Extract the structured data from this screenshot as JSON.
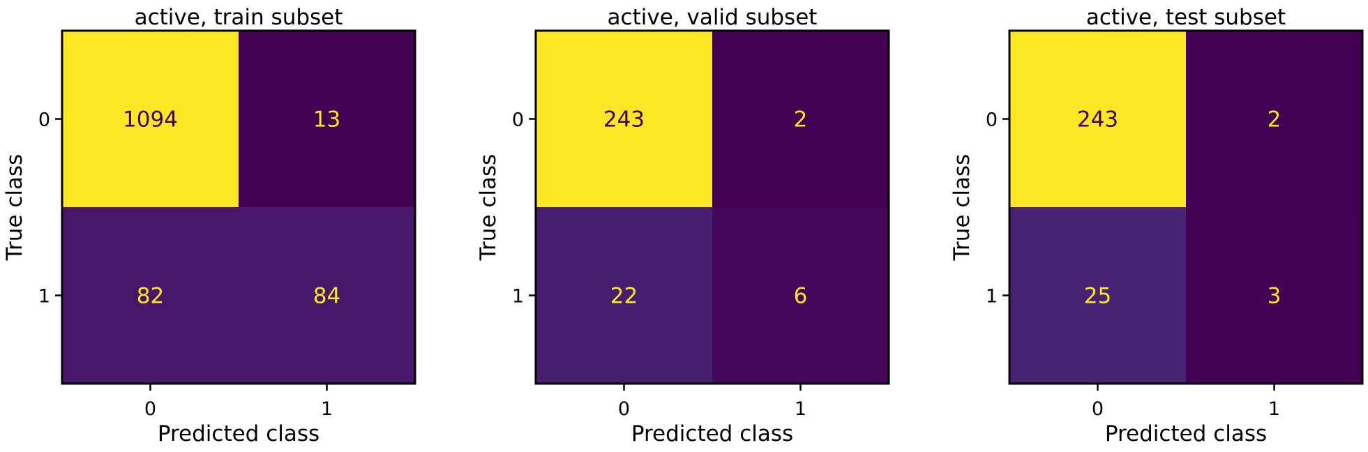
{
  "figure": {
    "colors": {
      "viridis_low": "#440154",
      "viridis_high": "#fde725",
      "text_on_dark": "#fde725",
      "text_on_light": "#440154",
      "axis": "#000000"
    }
  },
  "chart_data": [
    {
      "type": "heatmap",
      "title": "active, train subset",
      "xlabel": "Predicted class",
      "ylabel": "True class",
      "x_categories": [
        "0",
        "1"
      ],
      "y_categories": [
        "0",
        "1"
      ],
      "values": [
        [
          1094,
          13
        ],
        [
          82,
          84
        ]
      ],
      "colormap": "viridis",
      "grid": false
    },
    {
      "type": "heatmap",
      "title": "active, valid subset",
      "xlabel": "Predicted class",
      "ylabel": "True class",
      "x_categories": [
        "0",
        "1"
      ],
      "y_categories": [
        "0",
        "1"
      ],
      "values": [
        [
          243,
          2
        ],
        [
          22,
          6
        ]
      ],
      "colormap": "viridis",
      "grid": false
    },
    {
      "type": "heatmap",
      "title": "active, test subset",
      "xlabel": "Predicted class",
      "ylabel": "True class",
      "x_categories": [
        "0",
        "1"
      ],
      "y_categories": [
        "0",
        "1"
      ],
      "values": [
        [
          243,
          2
        ],
        [
          25,
          3
        ]
      ],
      "colormap": "viridis",
      "grid": false
    }
  ]
}
